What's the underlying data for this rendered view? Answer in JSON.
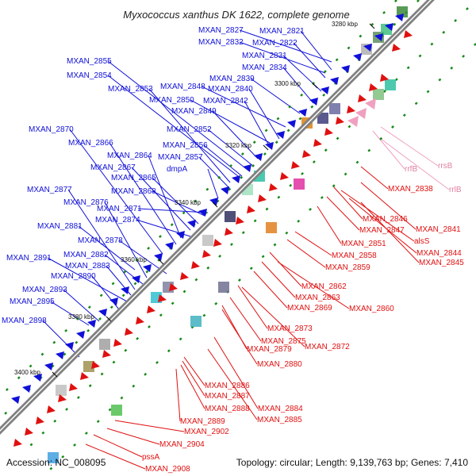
{
  "title": "Myxococcus xanthus DK 1622, complete genome",
  "footer": {
    "accession": "Accession: NC_008095",
    "stats": "Topology: circular; Length: 9,139,763 bp; Genes: 7,410"
  },
  "colors": {
    "forward": "#1010d8",
    "reverse": "#e01010",
    "rrna": "#f0a0c0",
    "backbone": "#808080",
    "tick": "#1a8a1a"
  },
  "ticks": [
    "3280 kbp",
    "3300 kbp",
    "3320 kbp",
    "3340 kbp",
    "3360 kbp",
    "3380 kbp",
    "3400 kbp"
  ],
  "forward_labels": [
    "MXAN_2827",
    "MXAN_2821",
    "MXAN_2832",
    "MXAN_2822",
    "MXAN_2855",
    "MXAN_2831",
    "MXAN_2834",
    "MXAN_2854",
    "MXAN_2839",
    "MXAN_2853",
    "MXAN_2848",
    "MXAN_2840",
    "MXAN_2850",
    "MXAN_2842",
    "MXAN_2849",
    "MXAN_2870",
    "MXAN_2852",
    "MXAN_2866",
    "MXAN_2856",
    "MXAN_2864",
    "MXAN_2857",
    "MXAN_2867",
    "dmpA",
    "MXAN_2865",
    "MXAN_2877",
    "MXAN_2868",
    "MXAN_2876",
    "MXAN_2871",
    "MXAN_2874",
    "MXAN_2881",
    "MXAN_2878",
    "MXAN_2882",
    "MXAN_2891",
    "MXAN_2883",
    "MXAN_2890",
    "MXAN_2893",
    "MXAN_2895",
    "MXAN_2898"
  ],
  "reverse_labels": [
    "MXAN_2838",
    "MXAN_2846",
    "MXAN_2841",
    "MXAN_2847",
    "alsS",
    "MXAN_2851",
    "MXAN_2844",
    "MXAN_2858",
    "MXAN_2845",
    "MXAN_2859",
    "MXAN_2862",
    "MXAN_2863",
    "MXAN_2869",
    "MXAN_2860",
    "MXAN_2873",
    "MXAN_2875",
    "MXAN_2872",
    "MXAN_2879",
    "MXAN_2880",
    "MXAN_2886",
    "MXAN_2887",
    "MXAN_2888",
    "MXAN_2884",
    "MXAN_2889",
    "MXAN_2885",
    "MXAN_2902",
    "MXAN_2904",
    "pssA",
    "MXAN_2908"
  ],
  "rrna_labels": [
    "rrsB",
    "rrfB",
    "rrlB"
  ]
}
